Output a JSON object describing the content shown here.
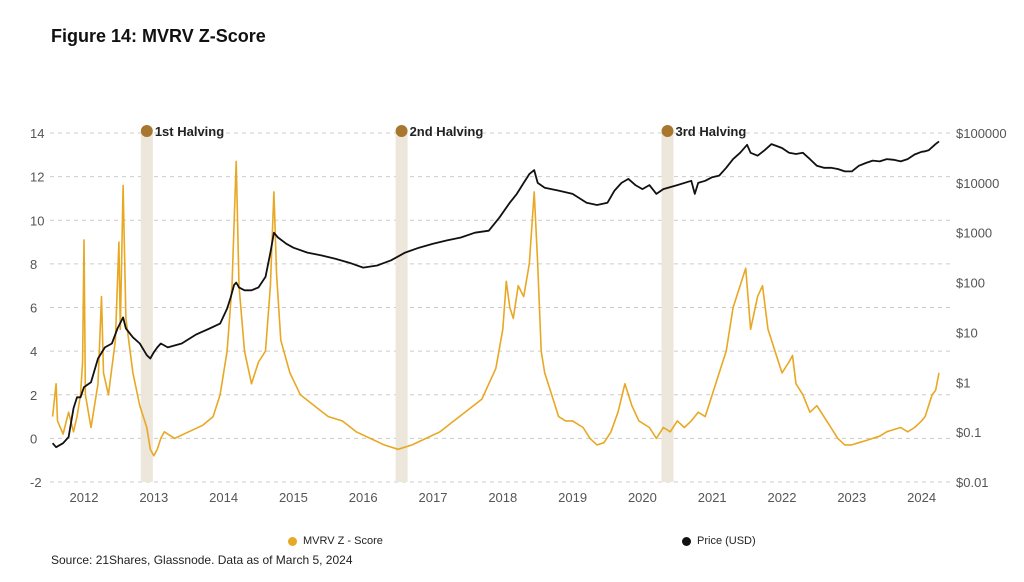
{
  "title": "Figure 14: MVRV Z-Score",
  "source": "Source: 21Shares, Glassnode. Data as of March 5, 2024",
  "colors": {
    "zscore": "#E8A823",
    "price": "#111111",
    "halving_band": "#EDE6DA",
    "halving_dot": "#A8762E",
    "grid": "#cccccc"
  },
  "chart_data": {
    "type": "line",
    "x_ticks": [
      "2012",
      "2013",
      "2014",
      "2015",
      "2016",
      "2017",
      "2018",
      "2019",
      "2020",
      "2021",
      "2022",
      "2023",
      "2024"
    ],
    "y_left": {
      "ticks": [
        "-2",
        "0",
        "2",
        "4",
        "6",
        "8",
        "10",
        "12",
        "14"
      ],
      "ylim": [
        -2,
        14
      ]
    },
    "y_right": {
      "scale": "log",
      "ticks": [
        "$0.01",
        "$0.1",
        "$1",
        "$10",
        "$100",
        "$1000",
        "$10000",
        "$100000"
      ],
      "ylim": [
        0.01,
        100000
      ]
    },
    "legend_placement": "bottom",
    "series": [
      {
        "name": "MVRV Z - Score",
        "axis": "left",
        "points": [
          [
            2011.55,
            1.0
          ],
          [
            2011.6,
            2.5
          ],
          [
            2011.62,
            0.8
          ],
          [
            2011.7,
            0.2
          ],
          [
            2011.78,
            1.2
          ],
          [
            2011.85,
            0.3
          ],
          [
            2011.9,
            1.0
          ],
          [
            2011.95,
            2.0
          ],
          [
            2011.98,
            3.5
          ],
          [
            2012.0,
            9.1
          ],
          [
            2012.02,
            2.0
          ],
          [
            2012.1,
            0.5
          ],
          [
            2012.2,
            2.5
          ],
          [
            2012.25,
            6.5
          ],
          [
            2012.28,
            3.0
          ],
          [
            2012.35,
            2.0
          ],
          [
            2012.45,
            4.5
          ],
          [
            2012.5,
            9.0
          ],
          [
            2012.52,
            5.0
          ],
          [
            2012.56,
            11.6
          ],
          [
            2012.6,
            5.5
          ],
          [
            2012.7,
            3.0
          ],
          [
            2012.8,
            1.5
          ],
          [
            2012.9,
            0.5
          ],
          [
            2012.95,
            -0.5
          ],
          [
            2013.0,
            -0.8
          ],
          [
            2013.05,
            -0.5
          ],
          [
            2013.1,
            0.0
          ],
          [
            2013.15,
            0.3
          ],
          [
            2013.3,
            0.0
          ],
          [
            2013.5,
            0.3
          ],
          [
            2013.7,
            0.6
          ],
          [
            2013.85,
            1.0
          ],
          [
            2013.95,
            2.0
          ],
          [
            2014.05,
            4.0
          ],
          [
            2014.12,
            7.0
          ],
          [
            2014.18,
            12.7
          ],
          [
            2014.22,
            7.0
          ],
          [
            2014.3,
            4.0
          ],
          [
            2014.4,
            2.5
          ],
          [
            2014.5,
            3.5
          ],
          [
            2014.6,
            4.0
          ],
          [
            2014.67,
            7.0
          ],
          [
            2014.72,
            11.3
          ],
          [
            2014.76,
            7.5
          ],
          [
            2014.82,
            4.5
          ],
          [
            2014.95,
            3.0
          ],
          [
            2015.1,
            2.0
          ],
          [
            2015.3,
            1.5
          ],
          [
            2015.5,
            1.0
          ],
          [
            2015.7,
            0.8
          ],
          [
            2015.9,
            0.3
          ],
          [
            2016.1,
            0.0
          ],
          [
            2016.3,
            -0.3
          ],
          [
            2016.5,
            -0.5
          ],
          [
            2016.7,
            -0.3
          ],
          [
            2016.9,
            0.0
          ],
          [
            2017.1,
            0.3
          ],
          [
            2017.3,
            0.8
          ],
          [
            2017.5,
            1.3
          ],
          [
            2017.7,
            1.8
          ],
          [
            2017.8,
            2.5
          ],
          [
            2017.9,
            3.2
          ],
          [
            2018.0,
            5.0
          ],
          [
            2018.05,
            7.2
          ],
          [
            2018.1,
            6.0
          ],
          [
            2018.15,
            5.5
          ],
          [
            2018.22,
            7.0
          ],
          [
            2018.3,
            6.5
          ],
          [
            2018.38,
            8.0
          ],
          [
            2018.45,
            11.3
          ],
          [
            2018.5,
            8.0
          ],
          [
            2018.55,
            4.0
          ],
          [
            2018.6,
            3.0
          ],
          [
            2018.7,
            2.0
          ],
          [
            2018.8,
            1.0
          ],
          [
            2018.9,
            0.8
          ],
          [
            2019.0,
            0.8
          ],
          [
            2019.15,
            0.5
          ],
          [
            2019.25,
            0.0
          ],
          [
            2019.35,
            -0.3
          ],
          [
            2019.45,
            -0.2
          ],
          [
            2019.55,
            0.3
          ],
          [
            2019.65,
            1.2
          ],
          [
            2019.75,
            2.5
          ],
          [
            2019.85,
            1.5
          ],
          [
            2019.95,
            0.8
          ],
          [
            2020.1,
            0.5
          ],
          [
            2020.2,
            0.0
          ],
          [
            2020.3,
            0.5
          ],
          [
            2020.4,
            0.3
          ],
          [
            2020.5,
            0.8
          ],
          [
            2020.6,
            0.5
          ],
          [
            2020.7,
            0.8
          ],
          [
            2020.8,
            1.2
          ],
          [
            2020.9,
            1.0
          ],
          [
            2021.0,
            2.0
          ],
          [
            2021.1,
            3.0
          ],
          [
            2021.2,
            4.0
          ],
          [
            2021.3,
            6.0
          ],
          [
            2021.4,
            7.0
          ],
          [
            2021.48,
            7.8
          ],
          [
            2021.55,
            5.0
          ],
          [
            2021.65,
            6.5
          ],
          [
            2021.72,
            7.0
          ],
          [
            2021.8,
            5.0
          ],
          [
            2021.9,
            4.0
          ],
          [
            2022.0,
            3.0
          ],
          [
            2022.1,
            3.5
          ],
          [
            2022.15,
            3.8
          ],
          [
            2022.2,
            2.5
          ],
          [
            2022.3,
            2.0
          ],
          [
            2022.4,
            1.2
          ],
          [
            2022.5,
            1.5
          ],
          [
            2022.6,
            1.0
          ],
          [
            2022.7,
            0.5
          ],
          [
            2022.8,
            0.0
          ],
          [
            2022.9,
            -0.3
          ],
          [
            2023.0,
            -0.3
          ],
          [
            2023.1,
            -0.2
          ],
          [
            2023.2,
            -0.1
          ],
          [
            2023.3,
            0.0
          ],
          [
            2023.4,
            0.1
          ],
          [
            2023.5,
            0.3
          ],
          [
            2023.6,
            0.4
          ],
          [
            2023.7,
            0.5
          ],
          [
            2023.8,
            0.3
          ],
          [
            2023.9,
            0.5
          ],
          [
            2024.0,
            0.8
          ],
          [
            2024.05,
            1.0
          ],
          [
            2024.1,
            1.5
          ],
          [
            2024.15,
            2.0
          ],
          [
            2024.2,
            2.2
          ],
          [
            2024.25,
            3.0
          ]
        ]
      },
      {
        "name": "Price (USD)",
        "axis": "right",
        "points": [
          [
            2011.55,
            0.06
          ],
          [
            2011.6,
            0.05
          ],
          [
            2011.7,
            0.06
          ],
          [
            2011.78,
            0.08
          ],
          [
            2011.85,
            0.3
          ],
          [
            2011.9,
            0.5
          ],
          [
            2011.95,
            0.5
          ],
          [
            2012.0,
            0.8
          ],
          [
            2012.1,
            1.0
          ],
          [
            2012.2,
            3.0
          ],
          [
            2012.3,
            5.0
          ],
          [
            2012.4,
            6.0
          ],
          [
            2012.48,
            12.0
          ],
          [
            2012.56,
            20.0
          ],
          [
            2012.6,
            12.0
          ],
          [
            2012.7,
            8.0
          ],
          [
            2012.8,
            6.0
          ],
          [
            2012.9,
            3.5
          ],
          [
            2012.95,
            3.0
          ],
          [
            2013.0,
            4.0
          ],
          [
            2013.05,
            5.0
          ],
          [
            2013.1,
            6.0
          ],
          [
            2013.2,
            5.0
          ],
          [
            2013.4,
            6.0
          ],
          [
            2013.6,
            9.0
          ],
          [
            2013.8,
            12.0
          ],
          [
            2013.95,
            15.0
          ],
          [
            2014.05,
            30.0
          ],
          [
            2014.1,
            50.0
          ],
          [
            2014.15,
            90.0
          ],
          [
            2014.18,
            100.0
          ],
          [
            2014.22,
            80.0
          ],
          [
            2014.3,
            70.0
          ],
          [
            2014.4,
            70.0
          ],
          [
            2014.5,
            80.0
          ],
          [
            2014.6,
            130.0
          ],
          [
            2014.67,
            400.0
          ],
          [
            2014.72,
            1000.0
          ],
          [
            2014.78,
            800.0
          ],
          [
            2014.9,
            600.0
          ],
          [
            2015.0,
            500.0
          ],
          [
            2015.2,
            400.0
          ],
          [
            2015.4,
            350.0
          ],
          [
            2015.6,
            300.0
          ],
          [
            2015.8,
            250.0
          ],
          [
            2016.0,
            200.0
          ],
          [
            2016.2,
            220.0
          ],
          [
            2016.4,
            280.0
          ],
          [
            2016.6,
            400.0
          ],
          [
            2016.8,
            500.0
          ],
          [
            2017.0,
            600.0
          ],
          [
            2017.2,
            700.0
          ],
          [
            2017.4,
            800.0
          ],
          [
            2017.6,
            1000.0
          ],
          [
            2017.8,
            1100.0
          ],
          [
            2017.95,
            2000.0
          ],
          [
            2018.1,
            4000.0
          ],
          [
            2018.2,
            6000.0
          ],
          [
            2018.3,
            10000.0
          ],
          [
            2018.38,
            15000.0
          ],
          [
            2018.45,
            18000.0
          ],
          [
            2018.5,
            10000.0
          ],
          [
            2018.6,
            8000.0
          ],
          [
            2018.8,
            7000.0
          ],
          [
            2018.9,
            6500.0
          ],
          [
            2019.0,
            6000.0
          ],
          [
            2019.2,
            4000.0
          ],
          [
            2019.35,
            3600.0
          ],
          [
            2019.5,
            4000.0
          ],
          [
            2019.6,
            7000.0
          ],
          [
            2019.7,
            10000.0
          ],
          [
            2019.8,
            12000.0
          ],
          [
            2019.9,
            9000.0
          ],
          [
            2020.0,
            7500.0
          ],
          [
            2020.1,
            9000.0
          ],
          [
            2020.2,
            6000.0
          ],
          [
            2020.3,
            7500.0
          ],
          [
            2020.5,
            9000.0
          ],
          [
            2020.7,
            11000.0
          ],
          [
            2020.75,
            6000.0
          ],
          [
            2020.8,
            10000.0
          ],
          [
            2020.9,
            11000.0
          ],
          [
            2021.0,
            13000.0
          ],
          [
            2021.1,
            14000.0
          ],
          [
            2021.2,
            20000.0
          ],
          [
            2021.3,
            30000.0
          ],
          [
            2021.4,
            40000.0
          ],
          [
            2021.5,
            58000.0
          ],
          [
            2021.55,
            40000.0
          ],
          [
            2021.65,
            35000.0
          ],
          [
            2021.75,
            45000.0
          ],
          [
            2021.85,
            60000.0
          ],
          [
            2022.0,
            50000.0
          ],
          [
            2022.1,
            40000.0
          ],
          [
            2022.2,
            38000.0
          ],
          [
            2022.3,
            40000.0
          ],
          [
            2022.4,
            30000.0
          ],
          [
            2022.5,
            22000.0
          ],
          [
            2022.6,
            20000.0
          ],
          [
            2022.7,
            20000.0
          ],
          [
            2022.8,
            19000.0
          ],
          [
            2022.9,
            17000.0
          ],
          [
            2023.0,
            17000.0
          ],
          [
            2023.1,
            22000.0
          ],
          [
            2023.2,
            25000.0
          ],
          [
            2023.3,
            28000.0
          ],
          [
            2023.4,
            27000.0
          ],
          [
            2023.5,
            30000.0
          ],
          [
            2023.6,
            29000.0
          ],
          [
            2023.7,
            27000.0
          ],
          [
            2023.8,
            30000.0
          ],
          [
            2023.9,
            37000.0
          ],
          [
            2024.0,
            42000.0
          ],
          [
            2024.05,
            43000.0
          ],
          [
            2024.1,
            45000.0
          ],
          [
            2024.15,
            52000.0
          ],
          [
            2024.2,
            60000.0
          ],
          [
            2024.25,
            68000.0
          ]
        ]
      }
    ],
    "annotations": [
      {
        "label": "1st Halving",
        "x": 2012.9
      },
      {
        "label": "2nd Halving",
        "x": 2016.55
      },
      {
        "label": "3rd Halving",
        "x": 2020.36
      }
    ]
  }
}
